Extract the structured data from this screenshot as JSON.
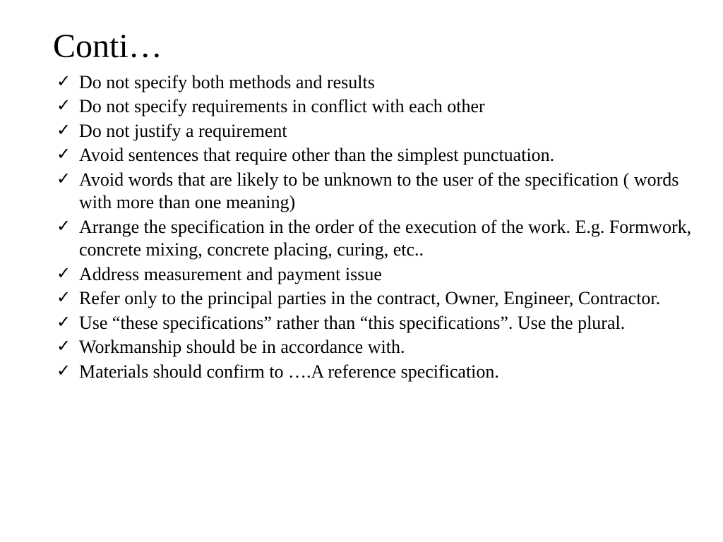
{
  "slide": {
    "title": "Conti…",
    "title_fontsize": 48,
    "body_fontsize": 26,
    "text_color": "#000000",
    "background_color": "#ffffff",
    "font_family": "Times New Roman",
    "bullet_marker": "checkmark",
    "bullets": [
      "Do not specify both methods and results",
      "Do not specify requirements in conflict with each other",
      "Do not justify a requirement",
      "Avoid sentences that require other than the simplest punctuation.",
      "Avoid words that are  likely to be unknown to the user of the specification ( words with more than one meaning)",
      "Arrange the specification in the order of the execution of the work. E.g. Formwork, concrete mixing, concrete placing, curing, etc..",
      "Address measurement and payment issue",
      "Refer only to the principal parties in the contract, Owner, Engineer, Contractor.",
      "Use “these specifications” rather than “this specifications”. Use the plural.",
      "Workmanship should be in accordance with.",
      " Materials should confirm to ….A reference specification."
    ]
  }
}
